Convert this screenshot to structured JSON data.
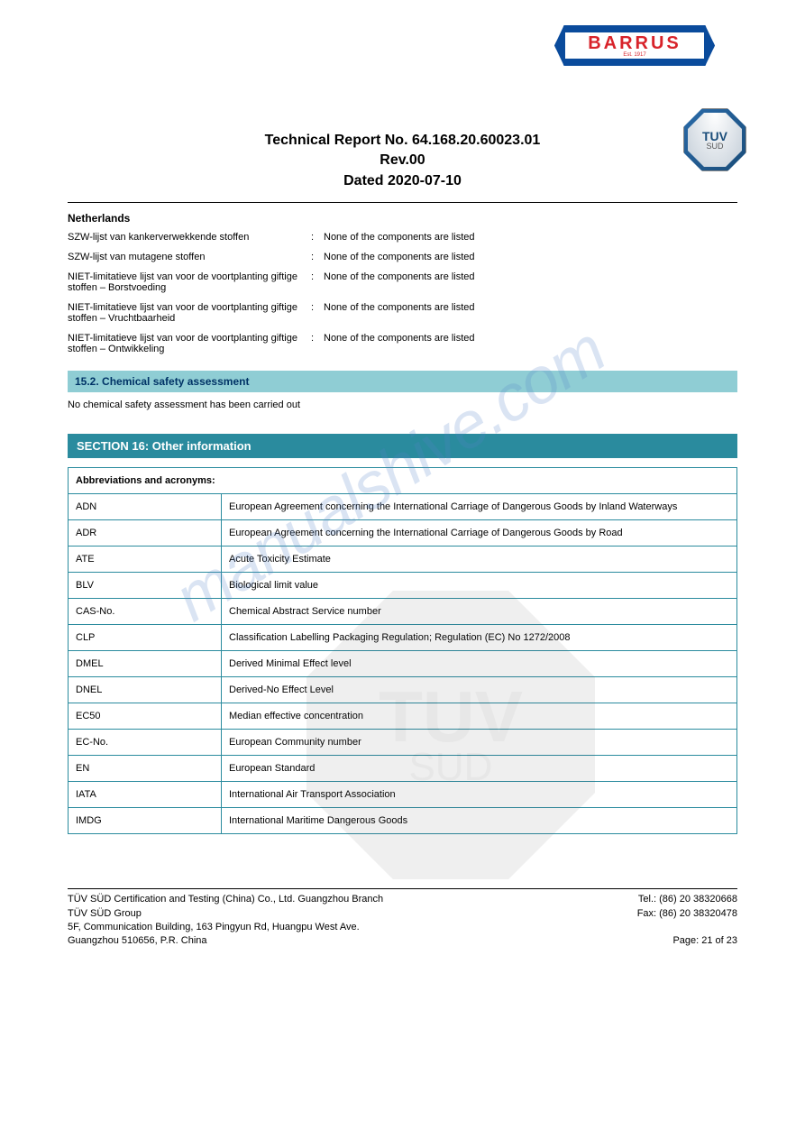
{
  "barrus": {
    "name": "BARRUS",
    "est": "Est. 1917"
  },
  "tuv": {
    "line1": "TUV",
    "line2": "SUD"
  },
  "header": {
    "l1": "Technical Report No. 64.168.20.60023.01",
    "l2": "Rev.00",
    "l3": "Dated 2020-07-10"
  },
  "country": "Netherlands",
  "regs": [
    {
      "label": "SZW-lijst van kankerverwekkende stoffen",
      "value": "None of the components are listed"
    },
    {
      "label": "SZW-lijst van mutagene stoffen",
      "value": "None of the components are listed"
    },
    {
      "label": "NIET-limitatieve lijst van voor de voortplanting giftige stoffen – Borstvoeding",
      "value": "None of the components are listed"
    },
    {
      "label": "NIET-limitatieve lijst van voor de voortplanting giftige stoffen – Vruchtbaarheid",
      "value": "None of the components are listed"
    },
    {
      "label": "NIET-limitatieve lijst van voor de voortplanting giftige stoffen – Ontwikkeling",
      "value": "None of the components are listed"
    }
  ],
  "sec152": {
    "title": "15.2. Chemical safety assessment",
    "text": "No chemical safety assessment has been carried out"
  },
  "sec16": {
    "title": "SECTION 16: Other information"
  },
  "abbr": {
    "header": "Abbreviations and acronyms:",
    "rows": [
      {
        "k": "ADN",
        "v": "European Agreement concerning the International Carriage of Dangerous Goods by Inland Waterways"
      },
      {
        "k": "ADR",
        "v": "European Agreement concerning the International Carriage of Dangerous Goods by Road"
      },
      {
        "k": "ATE",
        "v": "Acute Toxicity Estimate"
      },
      {
        "k": "BLV",
        "v": "Biological limit value"
      },
      {
        "k": "CAS-No.",
        "v": "Chemical Abstract Service number"
      },
      {
        "k": "CLP",
        "v": "Classification Labelling Packaging Regulation; Regulation (EC) No 1272/2008"
      },
      {
        "k": "DMEL",
        "v": "Derived Minimal Effect level"
      },
      {
        "k": "DNEL",
        "v": "Derived-No Effect Level"
      },
      {
        "k": "EC50",
        "v": "Median effective concentration"
      },
      {
        "k": "EC-No.",
        "v": "European Community number"
      },
      {
        "k": "EN",
        "v": "European Standard"
      },
      {
        "k": "IATA",
        "v": "International Air Transport Association"
      },
      {
        "k": "IMDG",
        "v": "International Maritime Dangerous Goods"
      }
    ]
  },
  "footer": {
    "left": [
      "TÜV SÜD Certification and Testing (China) Co., Ltd. Guangzhou Branch",
      "TÜV SÜD Group",
      "5F, Communication Building, 163 Pingyun Rd, Huangpu West Ave.",
      "Guangzhou 510656, P.R. China"
    ],
    "right": [
      "Tel.: (86) 20 38320668",
      "Fax: (86) 20 38320478",
      "",
      "Page: 21 of  23"
    ]
  },
  "watermark": "manualshive.com"
}
